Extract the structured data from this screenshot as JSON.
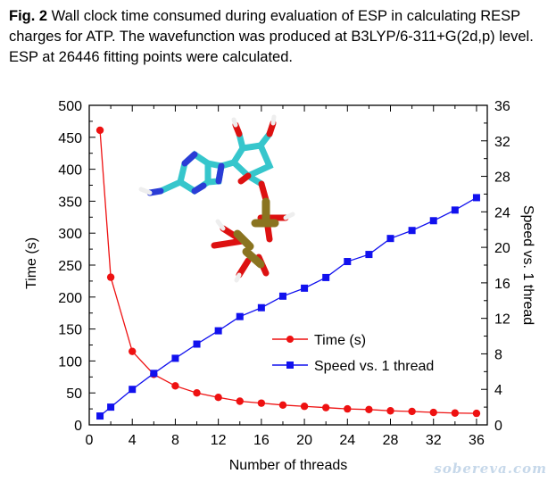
{
  "caption": {
    "label": "Fig.  2",
    "text": " Wall clock time consumed during evaluation of ESP in calculating RESP charges for ATP. The wavefunction was produced at B3LYP/6-311+G(2d,p) level. ESP at 26446 fitting points were calculated."
  },
  "watermark": "sobereva.com",
  "chart_data": {
    "type": "line",
    "title": "",
    "xlabel": "Number of threads",
    "ylabel": "Time (s)",
    "y2label": "Speed vs. 1 thread",
    "xlim": [
      0,
      37
    ],
    "ylim": [
      0,
      500
    ],
    "y2lim": [
      0,
      36
    ],
    "x_ticks": [
      0,
      4,
      8,
      12,
      16,
      20,
      24,
      28,
      32,
      36
    ],
    "y_ticks": [
      0,
      50,
      100,
      150,
      200,
      250,
      300,
      350,
      400,
      450,
      500
    ],
    "y2_ticks": [
      0,
      4,
      8,
      12,
      16,
      20,
      24,
      28,
      32,
      36
    ],
    "grid": false,
    "legend_position": "middle-right",
    "series": [
      {
        "name": "Time (s)",
        "axis": "left",
        "color": "#ee1111",
        "marker": "circle",
        "x": [
          1,
          2,
          4,
          6,
          8,
          10,
          12,
          14,
          16,
          18,
          20,
          22,
          24,
          26,
          28,
          30,
          32,
          34,
          36
        ],
        "y": [
          461,
          231,
          115,
          79,
          61,
          50,
          43,
          37,
          34,
          31,
          29,
          27,
          25,
          24,
          22,
          21,
          19.5,
          18.5,
          18
        ]
      },
      {
        "name": "Speed vs. 1 thread",
        "axis": "right",
        "color": "#1111ee",
        "marker": "square",
        "x": [
          1,
          2,
          4,
          6,
          8,
          10,
          12,
          14,
          16,
          18,
          20,
          22,
          24,
          26,
          28,
          30,
          32,
          34,
          36
        ],
        "y": [
          1,
          2,
          4,
          5.8,
          7.5,
          9.1,
          10.6,
          12.2,
          13.2,
          14.5,
          15.4,
          16.6,
          18.4,
          19.2,
          21,
          21.9,
          23,
          24.2,
          25.6
        ]
      }
    ]
  }
}
